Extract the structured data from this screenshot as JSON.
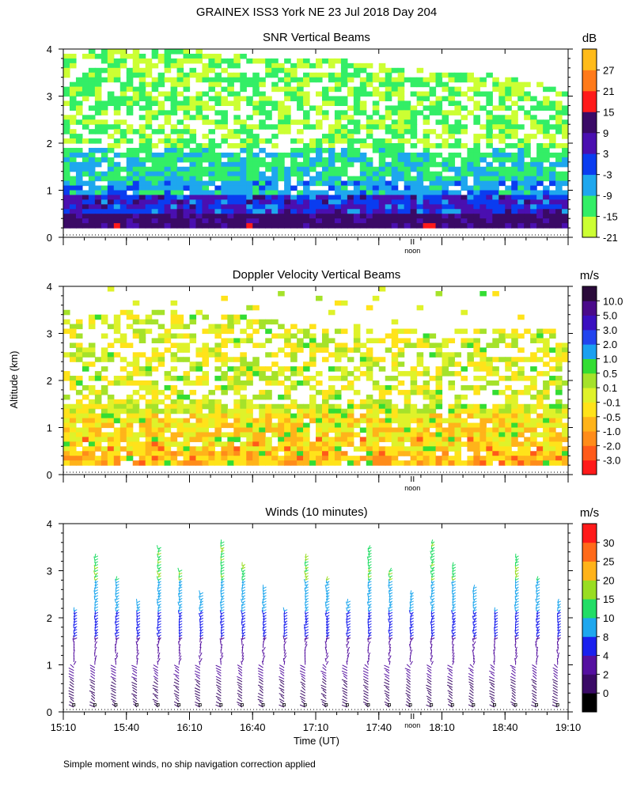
{
  "figure": {
    "title": "GRAINEX ISS3 York NE  23 Jul 2018 Day 204",
    "ylabel": "Altitude (km)",
    "xlabel": "Time (UT)",
    "footnote": "Simple moment winds, no ship navigation correction applied",
    "noon_label": "noon"
  },
  "chart_data": [
    {
      "type": "heatmap",
      "title": "SNR Vertical Beams",
      "units": "dB",
      "ylim": [
        0,
        4
      ],
      "yticks": [
        0,
        1,
        2,
        3,
        4
      ],
      "xlim": [
        "15:10",
        "19:10"
      ],
      "colorbar": {
        "colors": [
          "#ccff33",
          "#33ee66",
          "#1ea7ee",
          "#0a3cf0",
          "#4a0fb0",
          "#3a0a66",
          "#ff1a1a",
          "#ff7a1a",
          "#ffbb1a"
        ],
        "tick_labels": [
          "27",
          "21",
          "15",
          "9",
          "3",
          "-3",
          "-9",
          "-15",
          "-21"
        ]
      },
      "layers": [
        {
          "range_km": [
            0.1,
            0.5
          ],
          "dominant_snr_db": 9
        },
        {
          "range_km": [
            0.5,
            0.9
          ],
          "dominant_snr_db": 3
        },
        {
          "range_km": [
            0.9,
            1.8
          ],
          "dominant_snr_db": -12
        },
        {
          "range_km": [
            1.8,
            3.2
          ],
          "dominant_snr_db": -18
        },
        {
          "range_km": [
            3.2,
            4.0
          ],
          "dominant_snr_db": -20
        }
      ]
    },
    {
      "type": "heatmap",
      "title": "Doppler Velocity Vertical Beams",
      "units": "m/s",
      "ylim": [
        0,
        4
      ],
      "yticks": [
        0,
        1,
        2,
        3,
        4
      ],
      "xlim": [
        "15:10",
        "19:10"
      ],
      "colorbar": {
        "colors": [
          "#ff1a1a",
          "#ff5a1a",
          "#ff8c1a",
          "#ffb31a",
          "#ffe31a",
          "#dff22a",
          "#a5e22a",
          "#33dd33",
          "#1aa0f0",
          "#2244ee",
          "#3a0fc0",
          "#4a0a8a",
          "#2a0a3a"
        ],
        "tick_labels": [
          "10.0",
          "5.0",
          "3.0",
          "2.0",
          "1.0",
          "0.5",
          "0.1",
          "-0.1",
          "-0.5",
          "-1.0",
          "-2.0",
          "-3.0"
        ]
      },
      "layers": [
        {
          "range_km": [
            0.1,
            1.3
          ],
          "dominant_velocity_ms": -1.0
        },
        {
          "range_km": [
            1.3,
            2.5
          ],
          "dominant_velocity_ms": -0.3
        },
        {
          "range_km": [
            2.5,
            3.2
          ],
          "dominant_velocity_ms": 0.0
        }
      ]
    },
    {
      "type": "scatter",
      "title": "Winds (10 minutes)",
      "units": "m/s",
      "ylim": [
        0,
        4
      ],
      "yticks": [
        0,
        1,
        2,
        3,
        4
      ],
      "xlim": [
        "15:10",
        "19:10"
      ],
      "xticks": [
        "15:10",
        "15:40",
        "16:10",
        "16:40",
        "17:10",
        "17:40",
        "18:10",
        "18:40",
        "19:10"
      ],
      "colorbar": {
        "colors": [
          "#000000",
          "#3a0a66",
          "#5510a0",
          "#1a20ee",
          "#1ea7ee",
          "#22dd66",
          "#99dd22",
          "#ffb31a",
          "#ff6a1a",
          "#ff1a1a"
        ],
        "tick_labels": [
          "30",
          "25",
          "20",
          "15",
          "10",
          "8",
          "4",
          "2",
          "0"
        ]
      },
      "profiles_utc": [
        "15:15",
        "15:25",
        "15:35",
        "15:45",
        "15:55",
        "16:05",
        "16:15",
        "16:25",
        "16:35",
        "16:45",
        "16:55",
        "17:05",
        "17:15",
        "17:25",
        "17:35",
        "17:45",
        "17:55",
        "18:05",
        "18:15",
        "18:25",
        "18:35",
        "18:45",
        "18:55",
        "19:05"
      ],
      "speed_by_altitude": [
        {
          "altitude_km": 0.5,
          "speed_ms": 3
        },
        {
          "altitude_km": 1.5,
          "speed_ms": 6
        },
        {
          "altitude_km": 2.5,
          "speed_ms": 10
        },
        {
          "altitude_km": 3.5,
          "speed_ms": 15
        }
      ]
    }
  ]
}
